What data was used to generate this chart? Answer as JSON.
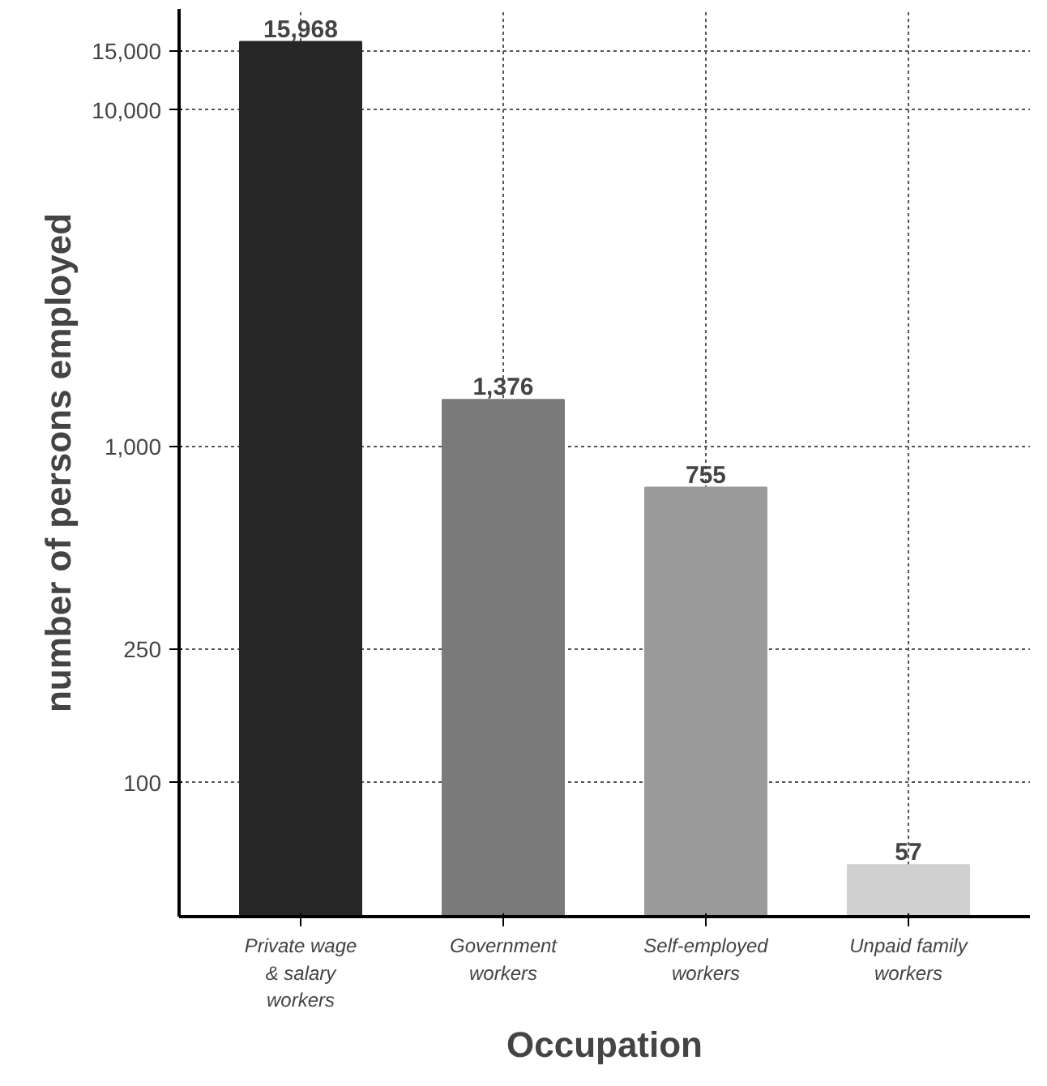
{
  "chart_data": {
    "type": "bar",
    "xlabel": "Occupation",
    "ylabel": "number of persons employed",
    "categories": [
      "Private wage & salary workers",
      "Government workers",
      "Self-employed workers",
      "Unpaid family workers"
    ],
    "values": [
      15968,
      1376,
      755,
      57
    ],
    "colors": [
      "#262626",
      "#7a7a7a",
      "#9a9a9a",
      "#d0d0d0"
    ],
    "value_labels": [
      "15,968",
      "1,376",
      "755",
      "57"
    ],
    "log": "y",
    "ylim": [
      40,
      20000
    ],
    "yticks": [
      {
        "value": 100,
        "label": "100"
      },
      {
        "value": 250,
        "label": "250"
      },
      {
        "value": 1000,
        "label": "1,000"
      },
      {
        "value": 10000,
        "label": "10,000"
      },
      {
        "value": 15000,
        "label": "15,000"
      }
    ],
    "grid": true
  }
}
